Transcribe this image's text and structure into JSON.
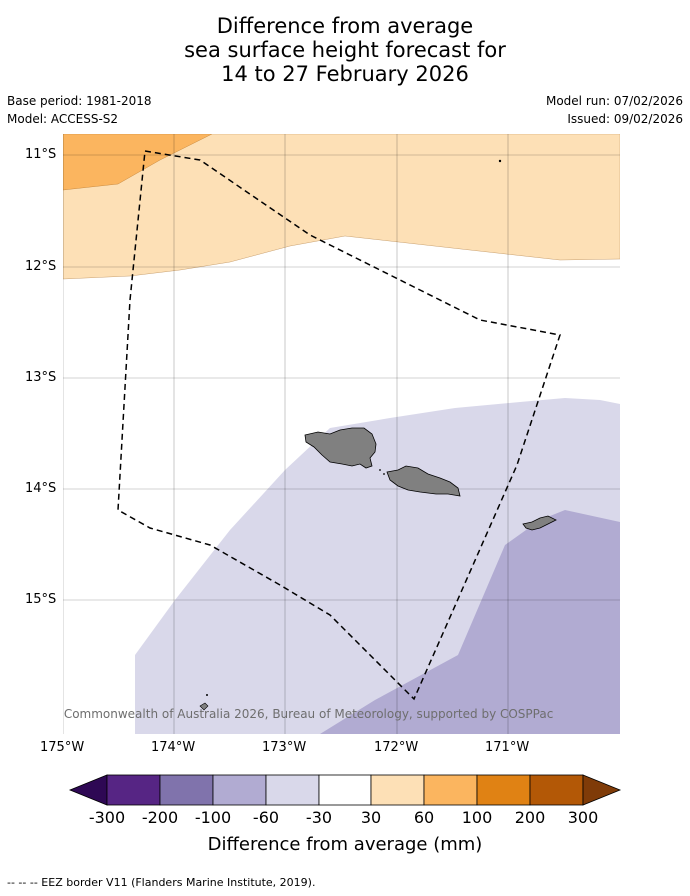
{
  "title": {
    "line1": "Difference from average",
    "line2": "sea surface height forecast for",
    "line3": "14 to 27 February 2026"
  },
  "meta": {
    "base_period": "Base period: 1981-2018",
    "model": "Model: ACCESS-S2",
    "model_run": "Model run: 07/02/2026",
    "issued": "Issued: 09/02/2026"
  },
  "axes": {
    "lat_labels": [
      "11°S",
      "12°S",
      "13°S",
      "14°S",
      "15°S"
    ],
    "lon_labels": [
      "175°W",
      "174°W",
      "173°W",
      "172°W",
      "171°W"
    ]
  },
  "map": {
    "copyright": "© Commonwealth of Australia 2026, Bureau of Meteorology, supported by COSPPac",
    "regions": [
      {
        "name": "30 to 60 mm",
        "color": "#fde0b6"
      },
      {
        "name": "60 to 100 mm",
        "color": "#fbb55f"
      },
      {
        "name": "-60 to -30 mm",
        "color": "#d9d8ea"
      },
      {
        "name": "-100 to -60 mm",
        "color": "#b1abd2"
      },
      {
        "name": "land",
        "color": "#808080"
      }
    ]
  },
  "colorbar": {
    "labels": [
      "-300",
      "-200",
      "-100",
      "-60",
      "-30",
      "30",
      "60",
      "100",
      "200",
      "300"
    ],
    "colors": [
      "#2e0854",
      "#562584",
      "#8073ac",
      "#b1abd2",
      "#d9d8ea",
      "#ffffff",
      "#fde0b6",
      "#fbb55f",
      "#e08214",
      "#b35806",
      "#7f3b08"
    ],
    "title": "Difference from average (mm)"
  },
  "footnote": "--  --  -- EEZ border V11 (Flanders Marine Institute, 2019)."
}
